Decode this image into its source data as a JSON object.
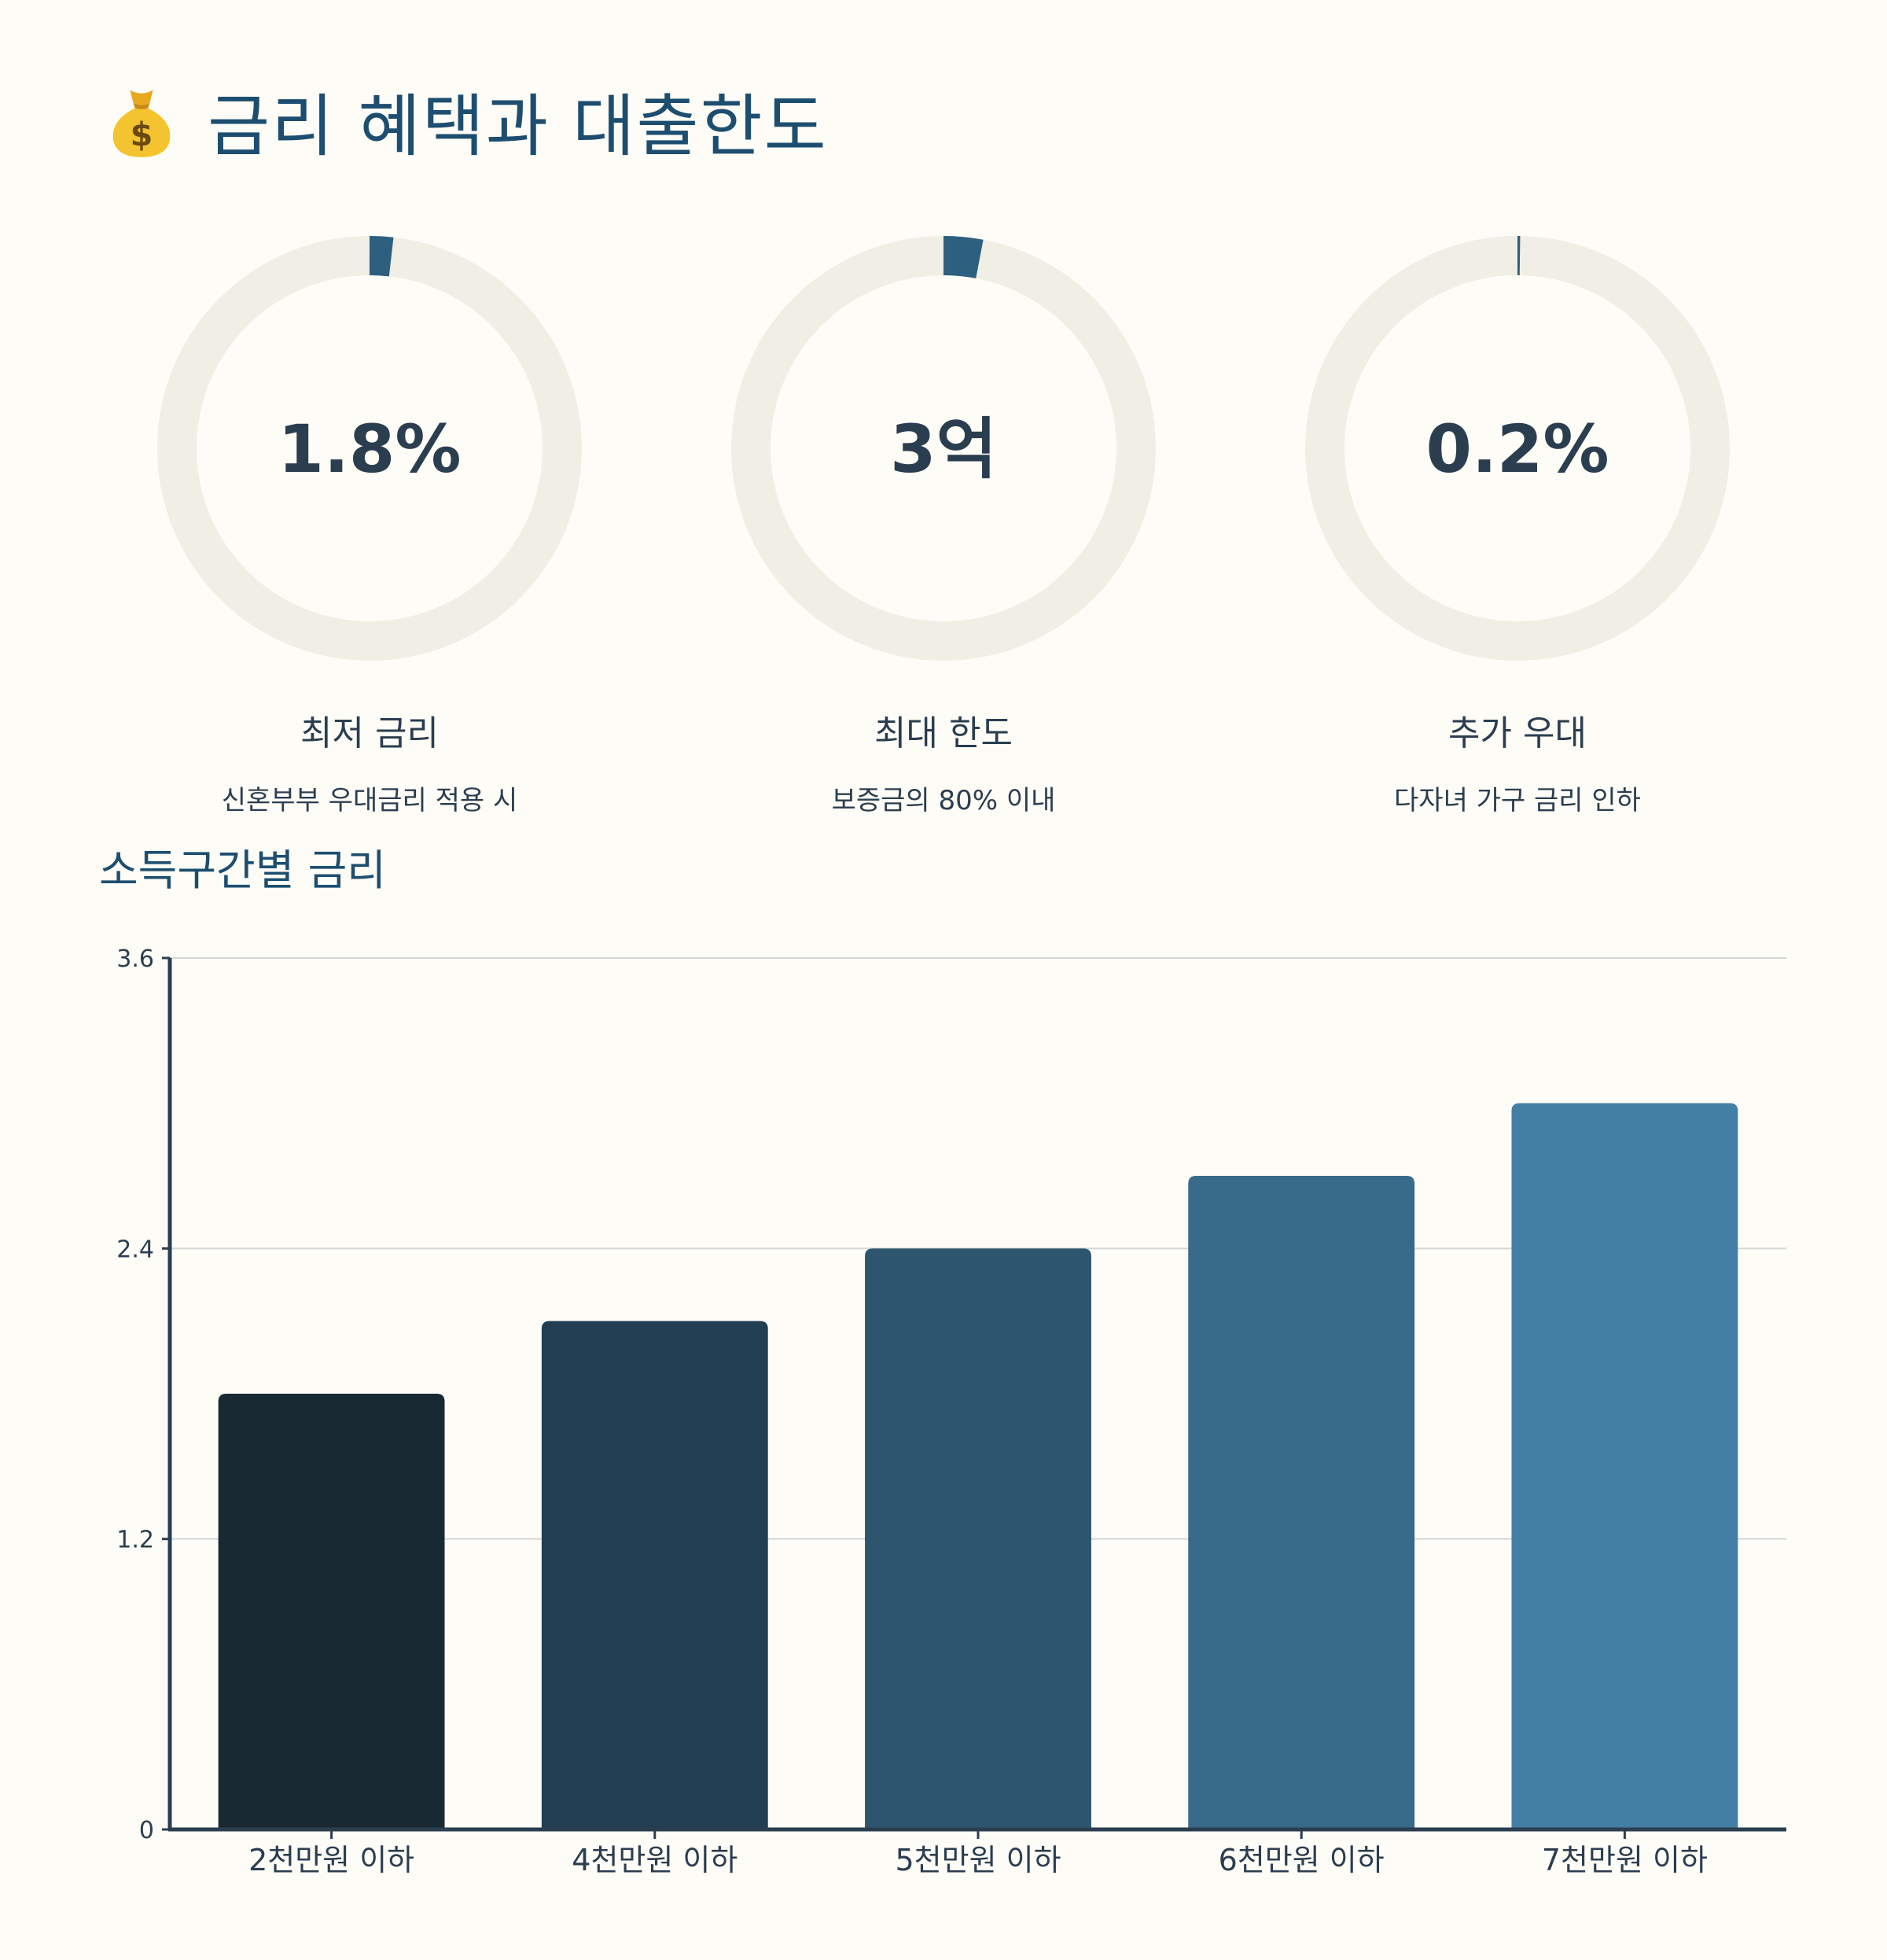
{
  "header": {
    "title": "금리 혜택과 대출한도",
    "icon": "money-bag-icon"
  },
  "stats": [
    {
      "value_text": "1.8%",
      "label": "최저 금리",
      "description": "신혼부부 우대금리 적용 시",
      "fill_fraction": 0.018
    },
    {
      "value_text": "3억",
      "label": "최대 한도",
      "description": "보증금의 80% 이내",
      "fill_fraction": 0.03
    },
    {
      "value_text": "0.2%",
      "label": "추가 우대",
      "description": "다자녀 가구 금리 인하",
      "fill_fraction": 0.002
    }
  ],
  "colors": {
    "background": "#fefcf6",
    "ring_track": "#f0eee5",
    "ring_fill": "#2d5f7e",
    "heading": "#1d4e70",
    "text": "#2b3e50",
    "grid": "#d3d7d8",
    "axis": "#2b3e50",
    "bars": [
      "#182933",
      "#213e53",
      "#2d556e",
      "#386a8a",
      "#437fa5"
    ]
  },
  "section": {
    "title": "소득구간별 금리"
  },
  "chart_data": {
    "type": "bar",
    "categories": [
      "2천만원 이하",
      "4천만원 이하",
      "5천만원 이하",
      "6천만원 이하",
      "7천만원 이하"
    ],
    "values": [
      1.8,
      2.1,
      2.4,
      2.7,
      3.0
    ],
    "ylim": [
      0,
      3.6
    ],
    "yticks": [
      0,
      1.2,
      2.4,
      3.6
    ],
    "ytick_labels": [
      "0",
      "1.2",
      "2.4",
      "3.6"
    ],
    "grid": true,
    "title": "",
    "xlabel": "",
    "ylabel": ""
  }
}
